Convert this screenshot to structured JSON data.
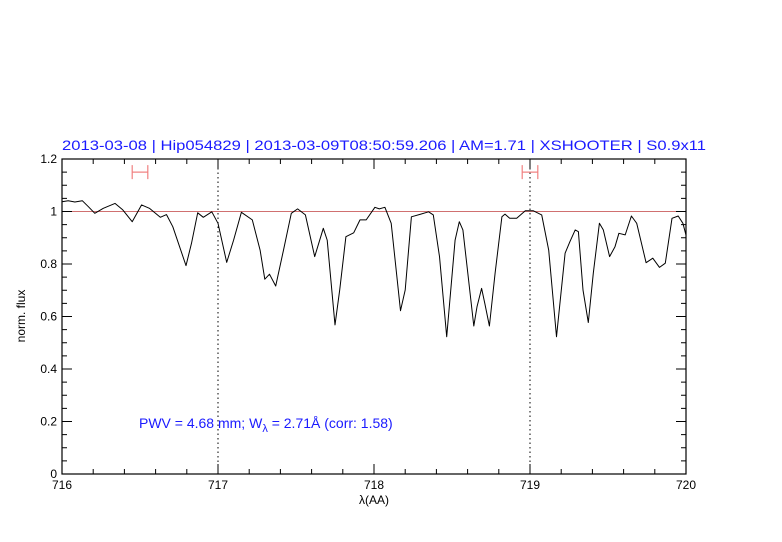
{
  "chart_data": {
    "type": "line",
    "title": "2013-03-08  |  Hip054829  |  2013-03-09T08:50:59.206  |  AM=1.71  |  XSHOOTER  |  S0.9x11",
    "xlabel": "λ(AA)",
    "ylabel": "norm. flux",
    "xlim": [
      716,
      720
    ],
    "ylim": [
      0,
      1.2
    ],
    "xticks": [
      716,
      717,
      718,
      719,
      720
    ],
    "xtick_labels": [
      "716",
      "717",
      "718",
      "719",
      "720"
    ],
    "xminor_step": 0.2,
    "yticks": [
      0,
      0.2,
      0.4,
      0.6,
      0.8,
      1,
      1.2
    ],
    "ytick_labels": [
      "0",
      "0.2",
      "0.4",
      "0.6",
      "0.8",
      "1",
      "1.2"
    ],
    "yminor_step": 0.05,
    "grid": false,
    "reference_line": {
      "y": 1,
      "color": "#d07070"
    },
    "vertical_markers": {
      "x": [
        717,
        719
      ],
      "style": "dotted",
      "color": "#000000"
    },
    "range_markers": {
      "color": "#f08080",
      "y": 1.15,
      "ranges": [
        [
          716.45,
          716.55
        ],
        [
          718.95,
          719.05
        ]
      ]
    },
    "annotation": {
      "prefix": "PWV = 4.68 mm; W",
      "subscript": "λ",
      "suffix": " = 2.71Å (corr: 1.58)",
      "color": "#1a1aff"
    },
    "series": [
      {
        "color": "#000000",
        "x": [
          716.0,
          716.04,
          716.083,
          716.13,
          716.17,
          716.21,
          716.265,
          716.34,
          716.39,
          716.45,
          716.51,
          716.56,
          716.63,
          716.67,
          716.71,
          716.795,
          716.83,
          716.87,
          716.906,
          716.96,
          717.0,
          717.056,
          717.1,
          717.15,
          717.22,
          717.27,
          717.3,
          717.33,
          717.37,
          717.42,
          717.47,
          717.51,
          717.56,
          717.62,
          717.675,
          717.7,
          717.75,
          717.78,
          717.82,
          717.87,
          717.91,
          717.95,
          718.006,
          718.034,
          718.07,
          718.11,
          718.17,
          718.2,
          718.24,
          718.295,
          718.35,
          718.38,
          718.42,
          718.466,
          718.52,
          718.547,
          718.57,
          718.64,
          718.66,
          718.69,
          718.71,
          718.74,
          718.776,
          718.82,
          718.84,
          718.87,
          718.915,
          718.97,
          719.02,
          719.075,
          719.12,
          719.17,
          719.225,
          719.256,
          719.29,
          719.31,
          719.34,
          719.374,
          719.406,
          719.445,
          719.47,
          719.51,
          719.545,
          719.57,
          719.61,
          719.65,
          719.684,
          719.744,
          719.787,
          719.83,
          719.867,
          719.91,
          719.95,
          719.98,
          720.0
        ],
        "y": [
          1.037,
          1.041,
          1.036,
          1.041,
          1.018,
          0.993,
          1.012,
          1.031,
          1.006,
          0.961,
          1.025,
          1.012,
          0.978,
          0.988,
          0.942,
          0.794,
          0.879,
          0.995,
          0.978,
          0.999,
          0.955,
          0.806,
          0.891,
          0.997,
          0.968,
          0.853,
          0.742,
          0.761,
          0.716,
          0.853,
          0.993,
          1.01,
          0.987,
          0.828,
          0.936,
          0.891,
          0.568,
          0.701,
          0.904,
          0.919,
          0.968,
          0.968,
          1.016,
          1.01,
          1.016,
          0.955,
          0.622,
          0.701,
          0.98,
          0.989,
          0.999,
          0.987,
          0.828,
          0.523,
          0.891,
          0.961,
          0.93,
          0.564,
          0.637,
          0.707,
          0.65,
          0.564,
          0.765,
          0.98,
          0.99,
          0.974,
          0.974,
          1.003,
          1.003,
          0.987,
          0.853,
          0.523,
          0.841,
          0.885,
          0.93,
          0.923,
          0.701,
          0.577,
          0.765,
          0.955,
          0.93,
          0.828,
          0.866,
          0.917,
          0.911,
          0.983,
          0.955,
          0.805,
          0.822,
          0.787,
          0.803,
          0.974,
          0.983,
          0.955,
          0.91
        ]
      }
    ]
  }
}
